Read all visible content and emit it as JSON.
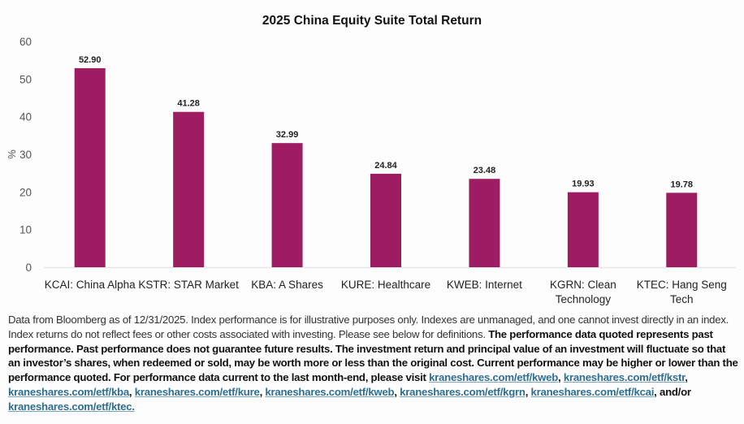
{
  "chart_data": {
    "type": "bar",
    "title": "2025 China Equity Suite Total Return",
    "xlabel": "",
    "ylabel": "%",
    "ylim": [
      0,
      60
    ],
    "yticks": [
      0,
      10,
      20,
      30,
      40,
      50,
      60
    ],
    "grid": false,
    "legend": "none",
    "bar_color": "#9e1d62",
    "categories": [
      [
        "KCAI: China Alpha"
      ],
      [
        "KSTR: STAR Market"
      ],
      [
        "KBA: A Shares"
      ],
      [
        "KURE: Healthcare"
      ],
      [
        "KWEB: Internet"
      ],
      [
        "KGRN: Clean",
        "Technology"
      ],
      [
        "KTEC: Hang Seng",
        "Tech"
      ]
    ],
    "values": [
      52.9,
      41.28,
      32.99,
      24.84,
      23.48,
      19.93,
      19.78
    ],
    "data_labels": [
      "52.90",
      "41.28",
      "32.99",
      "24.84",
      "23.48",
      "19.93",
      "19.78"
    ]
  },
  "disclaimer": {
    "plain": "Data from Bloomberg as of 12/31/2025. Index performance is for illustrative purposes only. Indexes are unmanaged, and one cannot invest directly in an index. Index returns do not reflect fees or other costs associated with investing. Please see below for definitions.",
    "bold": "The performance data quoted represents past performance. Past performance does not guarantee future results. The investment return and principal value of an investment will fluctuate so that an investor’s shares, when redeemed or sold, may be worth more or less than the original cost. Current performance may be higher or lower than the performance quoted. For performance data current to the last month-end, please visit",
    "links": [
      "kraneshares.com/etf/kweb",
      "kraneshares.com/etf/kstr",
      "kraneshares.com/etf/kba",
      "kraneshares.com/etf/kure",
      "kraneshares.com/etf/kweb",
      "kraneshares.com/etf/kgrn",
      "kraneshares.com/etf/kcai",
      "kraneshares.com/etf/ktec."
    ],
    "sep": ",",
    "andor": ", and/or"
  }
}
